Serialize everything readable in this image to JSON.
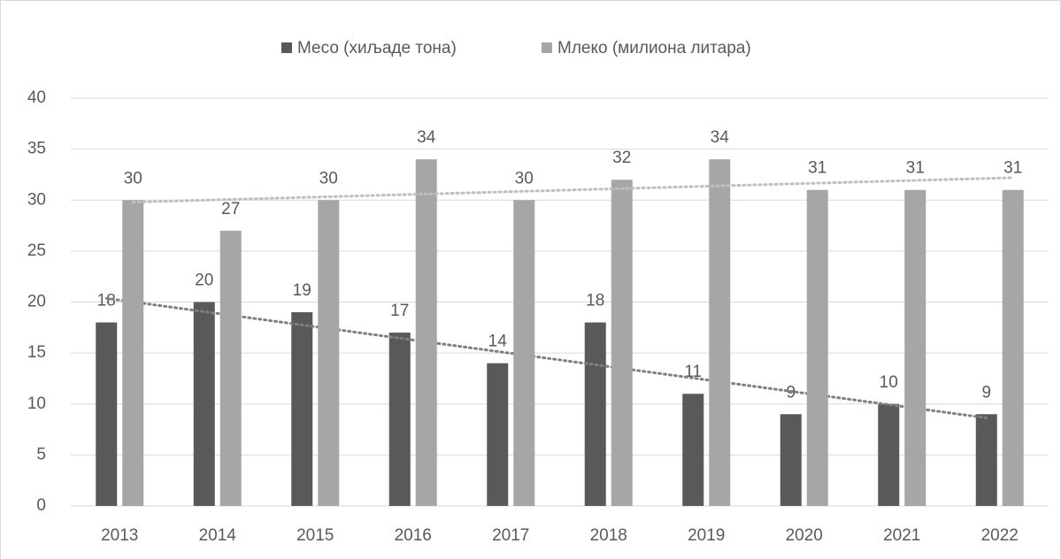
{
  "chart_data": {
    "type": "bar",
    "categories": [
      "2013",
      "2014",
      "2015",
      "2016",
      "2017",
      "2018",
      "2019",
      "2020",
      "2021",
      "2022"
    ],
    "series": [
      {
        "name": "Месо (хиљаде тона)",
        "color": "#595959",
        "values": [
          18,
          20,
          19,
          17,
          14,
          18,
          11,
          9,
          10,
          9
        ],
        "trendline": true
      },
      {
        "name": "Млеко (милиона литара)",
        "color": "#a6a6a6",
        "values": [
          30,
          27,
          30,
          34,
          30,
          32,
          34,
          31,
          31,
          31
        ],
        "trendline": true
      }
    ],
    "ylim": [
      0,
      40
    ],
    "yticks": [
      0,
      5,
      10,
      15,
      20,
      25,
      30,
      35,
      40
    ],
    "grid": true,
    "legend": "top",
    "data_labels": true
  }
}
